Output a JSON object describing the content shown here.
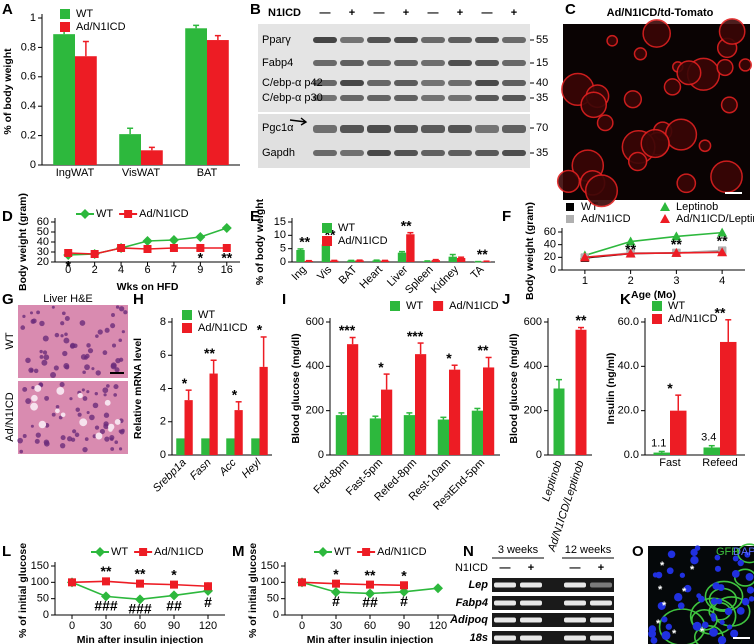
{
  "chart_data": [
    {
      "type": "bar",
      "panel": "A",
      "ylabel": "% of body weight",
      "categories": [
        "IngWAT",
        "VisWAT",
        "BAT"
      ],
      "series": [
        {
          "name": "WT",
          "color": "#2db83d",
          "values": [
            0.89,
            0.21,
            0.93
          ],
          "errors": [
            0.05,
            0.04,
            0.02
          ]
        },
        {
          "name": "Ad/N1ICD",
          "color": "#ed1c24",
          "values": [
            0.74,
            0.1,
            0.85
          ],
          "errors": [
            0.1,
            0.02,
            0.03
          ]
        }
      ],
      "ylim": [
        0,
        1
      ],
      "yticks": [
        0,
        0.2,
        0.4,
        0.6,
        0.8,
        1
      ],
      "legend": "upper left",
      "annotations": []
    },
    {
      "type": "line",
      "panel": "D",
      "ylabel": "Body weight (gram)",
      "xlabel": "Wks on HFD",
      "categories": [
        "0",
        "2",
        "4",
        "6",
        "7",
        "9",
        "16"
      ],
      "series": [
        {
          "name": "WT",
          "color": "#2db83d",
          "marker": "diamond",
          "values": [
            27,
            28,
            34,
            41,
            42,
            45,
            54
          ],
          "errors": [
            3,
            2,
            3,
            3,
            4,
            3,
            2
          ]
        },
        {
          "name": "Ad/N1ICD",
          "color": "#ed1c24",
          "marker": "square",
          "values": [
            29,
            28,
            34,
            33,
            34,
            34,
            34
          ],
          "errors": [
            3,
            2,
            3,
            3,
            2,
            2,
            2
          ]
        }
      ],
      "ylim": [
        20,
        60
      ],
      "yticks": [
        20,
        30,
        40,
        50,
        60
      ],
      "legend": "top",
      "annotations": [
        {
          "text": "*",
          "at": "0",
          "series": "WT",
          "side": "below"
        },
        {
          "text": "*",
          "at": "9",
          "series": "Ad/N1ICD",
          "side": "below"
        },
        {
          "text": "**",
          "at": "16",
          "series": "Ad/N1ICD",
          "side": "below"
        }
      ]
    },
    {
      "type": "bar",
      "panel": "E",
      "ylabel": "% of body weight",
      "categories": [
        "Ing",
        "Vis",
        "BAT",
        "Heart",
        "Liver",
        "Spleen",
        "Kidney",
        "TA"
      ],
      "series": [
        {
          "name": "WT",
          "color": "#2db83d",
          "values": [
            4.5,
            6.6,
            0.5,
            0.6,
            3.5,
            0.3,
            2.0,
            0.1
          ],
          "errors": [
            0.4,
            1.0,
            0.1,
            0.1,
            0.4,
            0.1,
            0.8,
            0.05
          ]
        },
        {
          "name": "Ad/N1ICD",
          "color": "#ed1c24",
          "values": [
            0.4,
            0.5,
            0.6,
            0.5,
            10.4,
            0.7,
            1.5,
            0.2
          ],
          "errors": [
            0.1,
            0.1,
            0.1,
            0.1,
            0.6,
            0.2,
            0.3,
            0.1
          ]
        }
      ],
      "ylim": [
        0,
        15
      ],
      "yticks": [
        0,
        5,
        10,
        15
      ],
      "legend": "upper left",
      "annotations": [
        {
          "text": "**",
          "at": "Ing"
        },
        {
          "text": "**",
          "at": "Vis"
        },
        {
          "text": "**",
          "at": "Liver"
        },
        {
          "text": "**",
          "at": "TA"
        }
      ]
    },
    {
      "type": "line",
      "panel": "F",
      "ylabel": "Body weight (gram)",
      "xlabel": "Age (Mo)",
      "x": [
        1,
        2,
        3,
        4
      ],
      "xlim": [
        0.5,
        4.5
      ],
      "xticks": [
        1,
        2,
        3,
        4
      ],
      "series": [
        {
          "name": "WT",
          "color": "#000000",
          "marker": "square",
          "values": [
            19,
            26,
            27,
            30
          ]
        },
        {
          "name": "Leptinob",
          "color": "#2db83d",
          "marker": "triangle",
          "values": [
            23,
            45,
            53,
            59
          ]
        },
        {
          "name": "Ad/N1ICD",
          "color": "#b0b0b0",
          "marker": "square",
          "values": [
            20,
            27,
            27,
            31
          ]
        },
        {
          "name": "Ad/N1ICD/Leptinob",
          "color": "#ed1c24",
          "marker": "triangle",
          "values": [
            20,
            26,
            27,
            28
          ]
        }
      ],
      "ylim": [
        0,
        60
      ],
      "yticks": [
        0,
        20,
        40,
        60
      ],
      "legend": "top",
      "annotations": [
        {
          "text": "**",
          "at": 2,
          "series": "Leptinob",
          "side": "below"
        },
        {
          "text": "**",
          "at": 3,
          "series": "Leptinob",
          "side": "below"
        },
        {
          "text": "**",
          "at": 4,
          "series": "Leptinob",
          "side": "below"
        }
      ]
    },
    {
      "type": "bar",
      "panel": "H",
      "ylabel": "Relative mRNA level",
      "categories": [
        "Srebp1a",
        "Fasn",
        "Acc",
        "Heyl"
      ],
      "series": [
        {
          "name": "WT",
          "color": "#2db83d",
          "values": [
            1,
            1,
            1,
            1
          ]
        },
        {
          "name": "Ad/N1ICD",
          "color": "#ed1c24",
          "values": [
            3.3,
            4.9,
            2.7,
            5.3
          ],
          "errors": [
            0.6,
            0.8,
            0.5,
            1.8
          ]
        }
      ],
      "ylim": [
        0,
        8
      ],
      "yticks": [
        0,
        2,
        4,
        6,
        8
      ],
      "legend": "upper left",
      "annotations": [
        {
          "text": "*",
          "at": "Srebp1a"
        },
        {
          "text": "**",
          "at": "Fasn"
        },
        {
          "text": "*",
          "at": "Acc"
        },
        {
          "text": "*",
          "at": "Heyl"
        }
      ]
    },
    {
      "type": "bar",
      "panel": "I",
      "ylabel": "Blood glucose (mg/dl)",
      "categories": [
        "Fed-8pm",
        "Fast-5pm",
        "Refed-8pm",
        "Rest-10am",
        "RestEnd-5pm"
      ],
      "series": [
        {
          "name": "WT",
          "color": "#2db83d",
          "values": [
            180,
            165,
            180,
            160,
            200
          ],
          "errors": [
            10,
            10,
            10,
            10,
            10
          ]
        },
        {
          "name": "Ad/N1ICD",
          "color": "#ed1c24",
          "values": [
            500,
            295,
            455,
            385,
            395
          ],
          "errors": [
            30,
            70,
            50,
            20,
            45
          ]
        }
      ],
      "ylim": [
        0,
        600
      ],
      "yticks": [
        0,
        200,
        400,
        600
      ],
      "legend": "top",
      "annotations": [
        {
          "text": "***",
          "at": "Fed-8pm"
        },
        {
          "text": "*",
          "at": "Fast-5pm"
        },
        {
          "text": "***",
          "at": "Refed-8pm"
        },
        {
          "text": "*",
          "at": "Rest-10am"
        },
        {
          "text": "**",
          "at": "RestEnd-5pm"
        }
      ]
    },
    {
      "type": "bar",
      "panel": "J",
      "ylabel": "Blood glucose (mg/dl)",
      "categories": [
        "Leptinob",
        "Ad/N1ICD/Leptinob"
      ],
      "series": [
        {
          "colors": [
            "#2db83d",
            "#ed1c24"
          ],
          "values": [
            300,
            565
          ],
          "errors": [
            40,
            10
          ]
        }
      ],
      "ylim": [
        0,
        600
      ],
      "yticks": [
        0,
        200,
        400,
        600
      ],
      "annotations": [
        {
          "text": "**",
          "at": "Ad/N1ICD/Leptinob"
        }
      ]
    },
    {
      "type": "bar",
      "panel": "K",
      "ylabel": "Insulin (ng/ml)",
      "categories": [
        "Fast",
        "Refeed"
      ],
      "series": [
        {
          "name": "WT",
          "color": "#2db83d",
          "values": [
            1.1,
            3.4
          ],
          "errors": [
            0.5,
            0.8
          ],
          "data_labels": true
        },
        {
          "name": "Ad/N1ICD",
          "color": "#ed1c24",
          "values": [
            20,
            51
          ],
          "errors": [
            7,
            10
          ]
        }
      ],
      "ylim": [
        0,
        60
      ],
      "yticks": [
        {
          "value": 0,
          "label": "0.0"
        },
        {
          "value": 20,
          "label": "20.0"
        },
        {
          "value": 40,
          "label": "40.0"
        },
        {
          "value": 60,
          "label": "60.0"
        }
      ],
      "legend": "upper left",
      "annotations": [
        {
          "text": "*",
          "at": "Fast"
        },
        {
          "text": "**",
          "at": "Refeed"
        }
      ]
    },
    {
      "type": "line",
      "panel": "L",
      "ylabel": "% of initial glucose",
      "xlabel": "Min after insulin injection",
      "x": [
        0,
        30,
        60,
        90,
        120
      ],
      "xlim": [
        -15,
        135
      ],
      "xticks": [
        0,
        30,
        60,
        90,
        120
      ],
      "series": [
        {
          "name": "WT",
          "color": "#2db83d",
          "marker": "diamond",
          "values": [
            100,
            57,
            48,
            60,
            74
          ],
          "errors": [
            0,
            5,
            5,
            8,
            10
          ]
        },
        {
          "name": "Ad/N1ICD",
          "color": "#ed1c24",
          "marker": "square",
          "values": [
            100,
            103,
            96,
            93,
            88
          ],
          "errors": [
            0,
            6,
            6,
            6,
            12
          ]
        }
      ],
      "ylim": [
        0,
        150
      ],
      "yticks": [
        0,
        50,
        100,
        150
      ],
      "legend": "top",
      "annotations": [
        {
          "text": "**",
          "at": 30,
          "series": "Ad/N1ICD",
          "side": "above"
        },
        {
          "text": "**",
          "at": 60,
          "series": "Ad/N1ICD",
          "side": "above"
        },
        {
          "text": "*",
          "at": 90,
          "series": "Ad/N1ICD",
          "side": "above"
        },
        {
          "text": "###",
          "at": 30,
          "series": "WT",
          "side": "below"
        },
        {
          "text": "###",
          "at": 60,
          "series": "WT",
          "side": "below"
        },
        {
          "text": "##",
          "at": 90,
          "series": "WT",
          "side": "below"
        },
        {
          "text": "#",
          "at": 120,
          "series": "WT",
          "side": "below"
        }
      ]
    },
    {
      "type": "line",
      "panel": "M",
      "ylabel": "% of initial glucose",
      "xlabel": "Min after insulin injection",
      "x": [
        0,
        30,
        60,
        90,
        120
      ],
      "xlim": [
        -15,
        135
      ],
      "xticks": [
        0,
        30,
        60,
        90,
        120
      ],
      "series": [
        {
          "name": "WT",
          "color": "#2db83d",
          "marker": "diamond",
          "values": [
            100,
            70,
            66,
            71,
            82
          ],
          "errors": [
            0,
            3,
            3,
            5,
            5
          ]
        },
        {
          "name": "Ad/N1ICD",
          "color": "#ed1c24",
          "marker": "square",
          "values": [
            100,
            96,
            93,
            91,
            null
          ],
          "errors": [
            0,
            4,
            4,
            5,
            null
          ]
        }
      ],
      "ylim": [
        0,
        150
      ],
      "yticks": [
        0,
        50,
        100,
        150
      ],
      "legend": "top",
      "annotations": [
        {
          "text": "*",
          "at": 30,
          "series": "Ad/N1ICD",
          "side": "above"
        },
        {
          "text": "**",
          "at": 60,
          "series": "Ad/N1ICD",
          "side": "above"
        },
        {
          "text": "*",
          "at": 90,
          "series": "Ad/N1ICD",
          "side": "above"
        },
        {
          "text": "#",
          "at": 30,
          "series": "WT",
          "side": "below"
        },
        {
          "text": "##",
          "at": 60,
          "series": "WT",
          "side": "below"
        },
        {
          "text": "#",
          "at": 90,
          "series": "WT",
          "side": "below"
        }
      ]
    }
  ],
  "blot": {
    "panel": "B",
    "treatment": "N1ICD",
    "lanes": [
      "—",
      "+",
      "—",
      "+",
      "—",
      "+",
      "—",
      "+"
    ],
    "rows": [
      {
        "label": "Pparγ",
        "mw": 55
      },
      {
        "label": "Fabp4",
        "mw": 15
      },
      {
        "label": "C/ebp-α p42",
        "mw": 40
      },
      {
        "label": "C/ebp-α p30",
        "mw": 35
      },
      {
        "label": "Pgc1α",
        "mw": 70
      },
      {
        "label": "Gapdh",
        "mw": 35
      }
    ]
  },
  "image_c": {
    "panel": "C",
    "title": "Ad/N1ICD/td-Tomato"
  },
  "image_g": {
    "panel": "G",
    "title": "Liver H&E",
    "rows": [
      "WT",
      "Ad/N1ICD"
    ]
  },
  "gel": {
    "panel": "N",
    "treatment": "N1ICD",
    "groups": [
      "3 weeks",
      "12 weeks"
    ],
    "lanes": [
      "—",
      "+",
      "—",
      "+"
    ],
    "rows": [
      "Lep",
      "Fabp4",
      "Adipoq",
      "18s"
    ]
  },
  "image_o": {
    "panel": "O",
    "channels": [
      "GFP",
      "DAPI"
    ],
    "stars": [
      "*",
      "*",
      "*",
      "*",
      "*",
      "*",
      "*",
      "*"
    ]
  }
}
